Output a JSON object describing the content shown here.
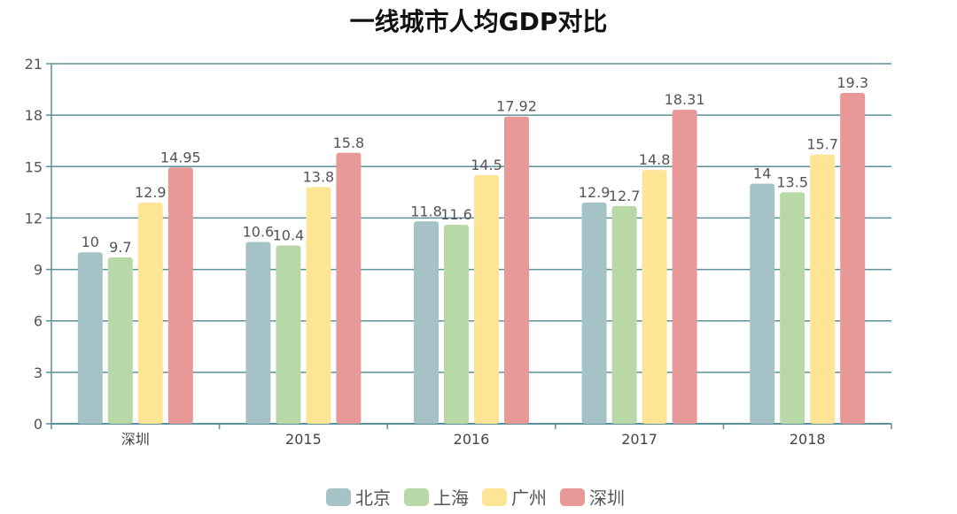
{
  "chart_data": {
    "type": "bar",
    "title": "一线城市人均GDP对比",
    "categories": [
      "深圳",
      "2015",
      "2016",
      "2017",
      "2018"
    ],
    "series": [
      {
        "name": "北京",
        "color": "#a5c3c7",
        "values": [
          10,
          10.6,
          11.8,
          12.9,
          14
        ]
      },
      {
        "name": "上海",
        "color": "#b8d8a8",
        "values": [
          9.7,
          10.4,
          11.6,
          12.7,
          13.5
        ]
      },
      {
        "name": "广州",
        "color": "#fee596",
        "values": [
          12.9,
          13.8,
          14.5,
          14.8,
          15.7
        ]
      },
      {
        "name": "深圳",
        "color": "#e99898",
        "values": [
          14.95,
          15.8,
          17.92,
          18.31,
          19.3
        ]
      }
    ],
    "value_labels": [
      [
        "10",
        "10.6",
        "11.8",
        "12.9",
        "14"
      ],
      [
        "9.7",
        "10.4",
        "11.6",
        "12.7",
        "13.5"
      ],
      [
        "12.9",
        "13.8",
        "14.5",
        "14.8",
        "15.7"
      ],
      [
        "14.95",
        "15.8",
        "17.92",
        "18.31",
        "19.3"
      ]
    ],
    "ylim": [
      0,
      21
    ],
    "yticks": [
      0,
      3,
      6,
      9,
      12,
      15,
      18,
      21
    ],
    "grid": true,
    "legend": "bottom-center",
    "axis_color": "#5b9098"
  }
}
